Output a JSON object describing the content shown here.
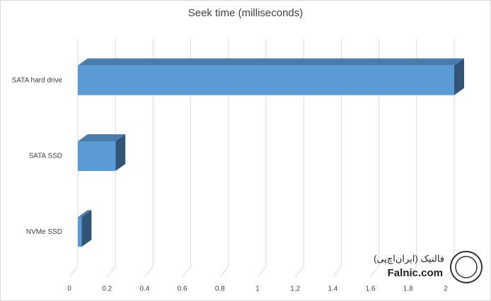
{
  "chart_data": {
    "type": "bar",
    "orientation": "horizontal",
    "title": "Seek time (milliseconds)",
    "categories": [
      "SATA hard drive",
      "SATA SSD",
      "NVMe SSD"
    ],
    "values": [
      2.0,
      0.2,
      0.02
    ],
    "color": "#5b9bd5",
    "xlim": [
      0,
      2
    ],
    "xticks": [
      0,
      0.2,
      0.4,
      0.6,
      0.8,
      1,
      1.2,
      1.4,
      1.6,
      1.8,
      2
    ],
    "grid": true
  },
  "watermark": {
    "name": "فالنیک (ایران‌اچ‌پی)",
    "site": "Falnic.com"
  }
}
